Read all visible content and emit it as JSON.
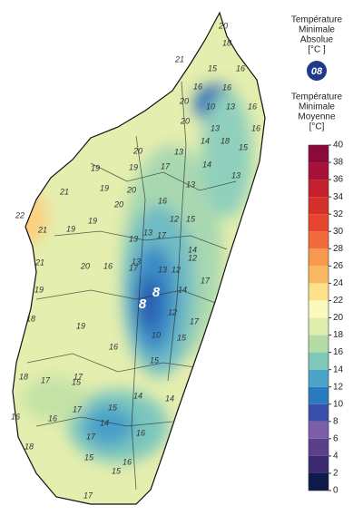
{
  "legend": {
    "absolute_title": [
      "Température",
      "Minimale",
      "Absolue",
      "[°C ]"
    ],
    "absolute_value": "08",
    "mean_title": [
      "Température",
      "Minimale",
      "Moyenne",
      "[°C]"
    ],
    "colorbar": {
      "ticks": [
        0,
        2,
        4,
        6,
        8,
        10,
        12,
        14,
        16,
        18,
        20,
        22,
        24,
        26,
        28,
        30,
        32,
        34,
        36,
        38,
        40
      ],
      "colors": [
        "#0d1a4a",
        "#3b2a6e",
        "#5a3f8a",
        "#7b5ea7",
        "#3a4fa8",
        "#2a7ac0",
        "#4aa5c8",
        "#7ec8b8",
        "#b3dca6",
        "#dfeeae",
        "#fafac0",
        "#fde08a",
        "#fbb862",
        "#f79a4e",
        "#f26b3a",
        "#e8452f",
        "#d6302a",
        "#c4202e",
        "#a8123a",
        "#8a0a3a"
      ]
    }
  },
  "map": {
    "labels": [
      "20",
      "18",
      "21",
      "15",
      "16",
      "16",
      "16",
      "20",
      "10",
      "13",
      "16",
      "13",
      "16",
      "20",
      "20",
      "14",
      "18",
      "13",
      "15",
      "19",
      "19",
      "17",
      "19",
      "20",
      "13",
      "14",
      "13",
      "16",
      "21",
      "20",
      "19",
      "12",
      "15",
      "22",
      "21",
      "19",
      "13",
      "13",
      "17",
      "20",
      "12",
      "16",
      "17",
      "21",
      "13",
      "13",
      "12",
      "14",
      "19",
      "14",
      "17",
      "18",
      "19",
      "12",
      "10",
      "15",
      "16",
      "17",
      "17",
      "15",
      "18",
      "17",
      "14",
      "14",
      "16",
      "18",
      "16",
      "17",
      "15",
      "15",
      "16",
      "14",
      "16",
      "15",
      "15",
      "17",
      "17"
    ],
    "highlight_labels": [
      "8",
      "8"
    ]
  }
}
